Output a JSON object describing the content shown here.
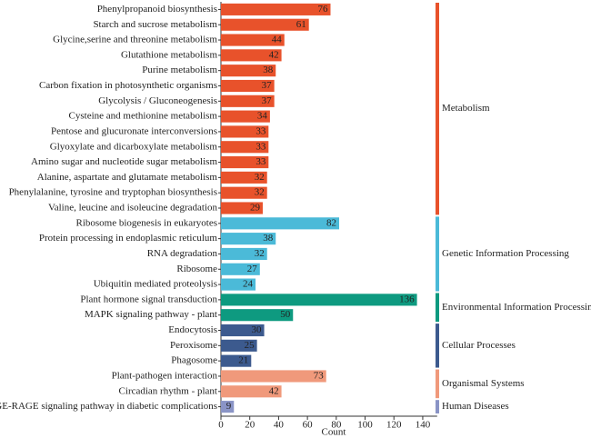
{
  "chart_data": {
    "type": "bar",
    "orientation": "horizontal",
    "xlabel": "Count",
    "xlim": [
      0,
      150
    ],
    "xticks": [
      0,
      20,
      40,
      60,
      80,
      100,
      120,
      140
    ],
    "series": [
      {
        "name": "Metabolism",
        "color": "#e8522b",
        "categories": [
          "Phenylpropanoid biosynthesis",
          "Starch and sucrose metabolism",
          "Glycine,serine and threonine metabolism",
          "Glutathione metabolism",
          "Purine metabolism",
          "Carbon fixation in photosynthetic organisms",
          "Glycolysis / Gluconeogenesis",
          "Cysteine and methionine metabolism",
          "Pentose and glucuronate interconversions",
          "Glyoxylate and dicarboxylate metabolism",
          "Amino sugar and nucleotide sugar metabolism",
          "Alanine, aspartate and glutamate metabolism",
          "Phenylalanine, tyrosine and tryptophan biosynthesis",
          "Valine, leucine and isoleucine degradation"
        ],
        "values": [
          76,
          61,
          44,
          42,
          38,
          37,
          37,
          34,
          33,
          33,
          33,
          32,
          32,
          29
        ]
      },
      {
        "name": "Genetic Information Processing",
        "color": "#4bbad8",
        "categories": [
          "Ribosome biogenesis in eukaryotes",
          "Protein processing in endoplasmic reticulum",
          "RNA degradation",
          "Ribosome",
          "Ubiquitin mediated proteolysis"
        ],
        "values": [
          82,
          38,
          32,
          27,
          24
        ]
      },
      {
        "name": "Environmental Information Processing",
        "color": "#0e9a80",
        "categories": [
          "Plant hormone signal transduction",
          "MAPK signaling pathway - plant"
        ],
        "values": [
          136,
          50
        ]
      },
      {
        "name": "Cellular Processes",
        "color": "#3c5a8e",
        "categories": [
          "Endocytosis",
          "Peroxisome",
          "Phagosome"
        ],
        "values": [
          30,
          25,
          21
        ]
      },
      {
        "name": "Organismal Systems",
        "color": "#f0997b",
        "categories": [
          "Plant-pathogen interaction",
          "Circadian rhythm - plant"
        ],
        "values": [
          73,
          42
        ]
      },
      {
        "name": "Human Diseases",
        "color": "#8a94c6",
        "categories": [
          "AGE-RAGE signaling pathway in diabetic complications"
        ],
        "values": [
          9
        ]
      }
    ]
  }
}
